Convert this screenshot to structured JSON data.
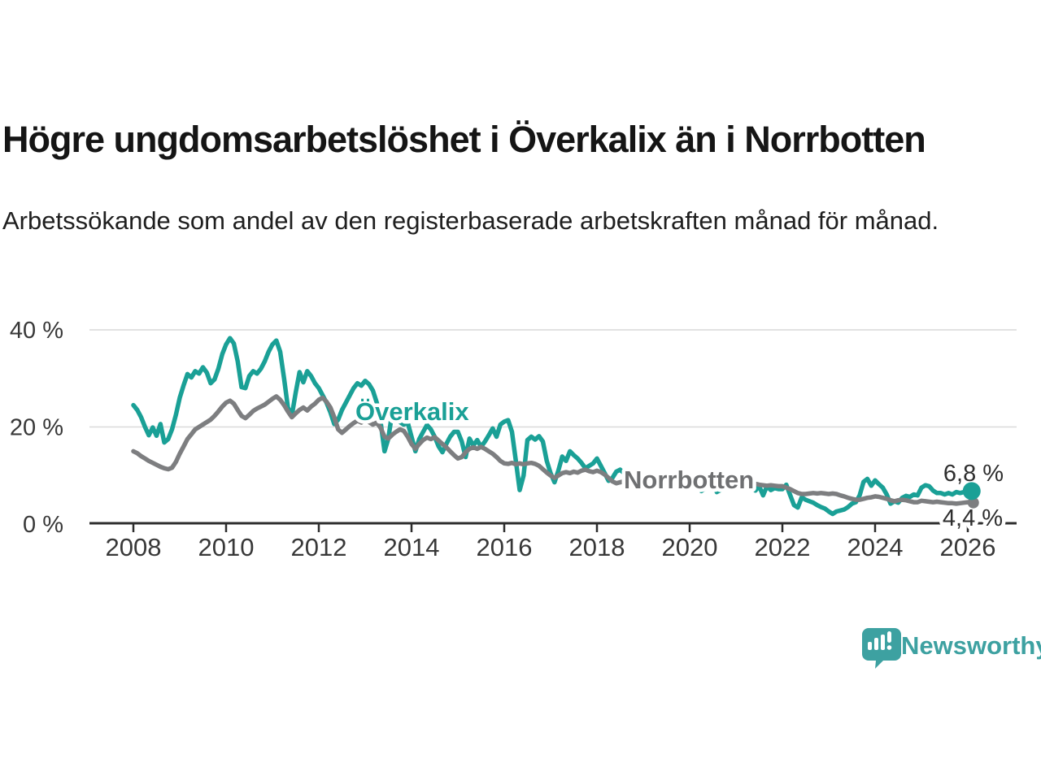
{
  "header": {
    "title": "Högre ungdomsarbetslöshet i Överkalix än i Norrbotten",
    "subtitle": "Arbetssökande som andel av den registerbaserade arbetskraften månad för månad."
  },
  "footer": {
    "brand": "Newsworthy",
    "logo_icon": "newsworthy-speech-bubble-bar-chart-icon"
  },
  "colors": {
    "overkalix": "#1aa096",
    "norrbotten_line": "#7d7e80",
    "norrbotten_label": "#6f7072",
    "grid": "#d9d9d9",
    "axis": "#2d2d2d",
    "logo_teal": "#3da1a1",
    "background": "#ffffff"
  },
  "chart_data": {
    "type": "line",
    "title": "Högre ungdomsarbetslöshet i Överkalix än i Norrbotten",
    "xlabel": "",
    "ylabel": "",
    "x_start_year": 2008,
    "x_interval": "monthly",
    "xlim": [
      2007.1,
      2027.1
    ],
    "ylim": [
      0,
      42
    ],
    "grid": "horizontal-only",
    "legend": "inline-labels",
    "x_tick_labels": [
      "2008",
      "2010",
      "2012",
      "2014",
      "2016",
      "2018",
      "2020",
      "2022",
      "2024",
      "2026"
    ],
    "x_tick_years": [
      2008,
      2010,
      2012,
      2014,
      2016,
      2018,
      2020,
      2022,
      2024,
      2026
    ],
    "y_ticks": [
      {
        "label": "40 %",
        "value": 40
      },
      {
        "label": "20 %",
        "value": 20
      },
      {
        "label": "0 %",
        "value": 0
      }
    ],
    "series": [
      {
        "name": "Överkalix",
        "color": "#1aa096",
        "end_label": "6,8 %",
        "end_value": 6.8,
        "values": [
          24.5,
          23.5,
          22.0,
          20.0,
          18.3,
          19.9,
          18.2,
          20.6,
          16.8,
          17.5,
          19.5,
          22.5,
          26.0,
          28.6,
          30.9,
          30.2,
          31.5,
          31.0,
          32.3,
          31.2,
          29.0,
          29.8,
          32.0,
          35.0,
          37.0,
          38.3,
          37.2,
          33.5,
          28.2,
          28.0,
          30.5,
          31.5,
          31.0,
          32.0,
          33.5,
          35.5,
          37.0,
          37.8,
          35.5,
          30.0,
          24.0,
          22.3,
          27.0,
          31.3,
          29.2,
          31.5,
          30.5,
          29.0,
          28.0,
          26.5,
          25.0,
          23.0,
          20.6,
          21.5,
          23.5,
          25.0,
          26.5,
          28.0,
          29.0,
          28.5,
          29.5,
          28.8,
          27.5,
          25.0,
          21.0,
          15.0,
          17.6,
          23.1,
          22.0,
          21.0,
          20.5,
          20.9,
          18.0,
          15.0,
          17.5,
          19.0,
          20.4,
          19.5,
          18.0,
          16.0,
          14.8,
          16.5,
          18.0,
          19.0,
          19.0,
          17.0,
          13.8,
          17.6,
          16.2,
          17.3,
          15.9,
          17.0,
          18.3,
          19.7,
          18.0,
          20.5,
          21.1,
          21.4,
          19.0,
          13.0,
          7.0,
          10.0,
          17.3,
          18.0,
          17.4,
          18.1,
          17.0,
          13.0,
          10.5,
          8.6,
          11.0,
          13.9,
          13.0,
          15.0,
          14.2,
          13.5,
          12.6,
          11.5,
          12.0,
          12.5,
          13.5,
          12.0,
          10.5,
          8.9,
          9.5,
          10.8,
          11.2,
          10.5,
          9.8,
          9.2,
          8.8,
          8.5,
          8.5,
          8.3,
          8.1,
          8.3,
          8.5,
          8.2,
          8.0,
          8.3,
          8.6,
          8.4,
          8.2,
          8.5,
          8.7,
          8.6,
          8.8,
          6.8,
          7.4,
          9.1,
          8.9,
          6.6,
          7.0,
          8.6,
          8.4,
          8.3,
          8.5,
          8.3,
          8.5,
          9.3,
          10.0,
          6.9,
          7.8,
          5.9,
          7.8,
          7.0,
          7.4,
          7.2,
          7.2,
          8.1,
          6.0,
          3.9,
          3.4,
          5.5,
          5.0,
          4.7,
          4.4,
          3.9,
          3.5,
          3.2,
          2.6,
          2.1,
          2.6,
          2.8,
          3.0,
          3.5,
          4.2,
          4.5,
          5.9,
          8.7,
          9.3,
          7.9,
          9.0,
          8.2,
          7.5,
          6.1,
          4.2,
          4.7,
          4.4,
          5.4,
          5.8,
          5.6,
          6.1,
          5.9,
          7.5,
          8.0,
          7.8,
          6.9,
          6.4,
          6.4,
          6.1,
          6.4,
          6.1,
          6.6,
          6.4,
          6.6,
          6.4,
          6.8
        ]
      },
      {
        "name": "Norrbotten",
        "color": "#7d7e80",
        "end_label": "4,4 %",
        "end_value": 4.4,
        "values": [
          15.0,
          14.6,
          14.0,
          13.5,
          13.0,
          12.6,
          12.2,
          11.8,
          11.5,
          11.3,
          11.6,
          12.8,
          14.5,
          16.0,
          17.5,
          18.5,
          19.5,
          20.0,
          20.5,
          21.0,
          21.5,
          22.3,
          23.2,
          24.2,
          25.0,
          25.4,
          24.8,
          23.5,
          22.3,
          21.8,
          22.5,
          23.3,
          23.8,
          24.2,
          24.6,
          25.2,
          25.8,
          26.3,
          25.6,
          24.5,
          23.2,
          22.0,
          22.8,
          23.5,
          24.0,
          23.4,
          24.2,
          24.8,
          25.6,
          26.0,
          25.2,
          24.0,
          22.0,
          19.5,
          18.8,
          19.5,
          20.2,
          20.8,
          21.3,
          20.9,
          21.5,
          21.0,
          20.5,
          20.9,
          19.8,
          18.0,
          17.6,
          18.4,
          19.0,
          19.5,
          19.2,
          18.0,
          16.5,
          15.5,
          16.5,
          17.3,
          17.8,
          17.5,
          17.9,
          17.2,
          16.5,
          15.8,
          15.0,
          14.2,
          13.5,
          13.8,
          14.8,
          15.5,
          15.8,
          15.5,
          15.9,
          15.5,
          15.0,
          14.5,
          13.8,
          13.0,
          12.5,
          12.4,
          12.6,
          12.3,
          12.5,
          12.3,
          12.5,
          12.6,
          12.4,
          12.0,
          11.3,
          10.6,
          10.0,
          9.5,
          10.0,
          10.5,
          10.7,
          10.5,
          10.8,
          10.6,
          11.0,
          11.2,
          10.9,
          10.7,
          11.0,
          10.7,
          10.2,
          9.5,
          8.8,
          8.4,
          8.6,
          8.8,
          8.6,
          8.4,
          8.3,
          8.5,
          8.7,
          8.5,
          8.3,
          8.5,
          8.6,
          8.4,
          8.3,
          8.5,
          8.7,
          8.5,
          8.4,
          8.6,
          8.8,
          8.7,
          8.9,
          9.3,
          9.5,
          9.3,
          9.1,
          8.9,
          8.8,
          8.7,
          8.6,
          8.5,
          8.6,
          8.5,
          8.4,
          8.3,
          8.5,
          8.3,
          8.1,
          8.0,
          7.9,
          8.0,
          7.9,
          7.8,
          7.8,
          7.5,
          7.2,
          6.8,
          6.4,
          6.2,
          6.2,
          6.3,
          6.4,
          6.3,
          6.4,
          6.3,
          6.2,
          6.3,
          6.2,
          5.9,
          5.7,
          5.4,
          5.2,
          5.0,
          5.0,
          5.2,
          5.4,
          5.5,
          5.7,
          5.6,
          5.4,
          5.2,
          4.9,
          4.7,
          4.9,
          5.0,
          4.9,
          4.7,
          4.5,
          4.5,
          4.8,
          4.7,
          4.6,
          4.5,
          4.6,
          4.5,
          4.4,
          4.3,
          4.3,
          4.2,
          4.3,
          4.4,
          4.5,
          4.4
        ]
      }
    ]
  }
}
